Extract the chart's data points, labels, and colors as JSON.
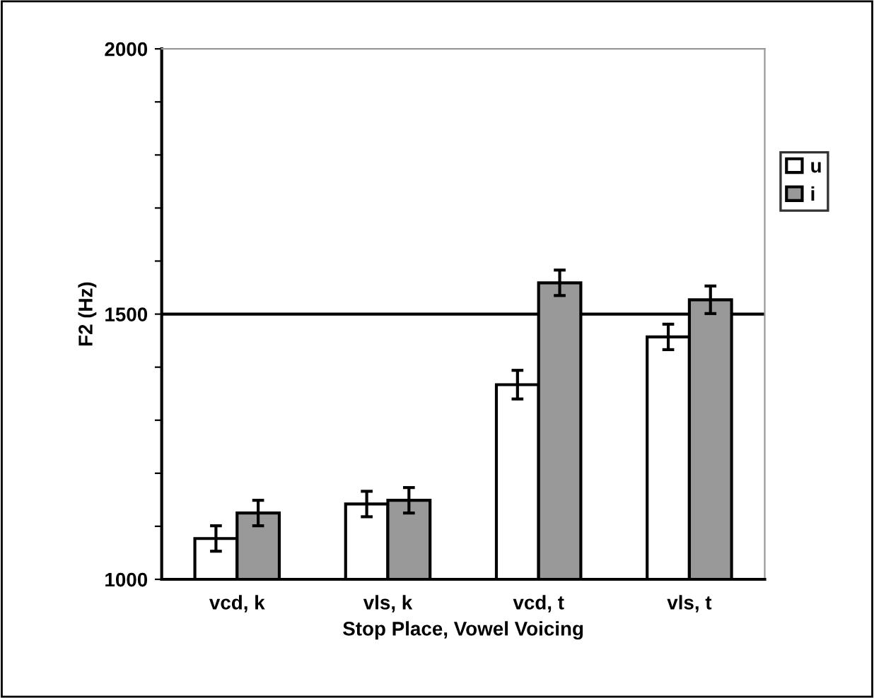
{
  "chart_data": {
    "type": "bar",
    "xlabel": "Stop Place, Vowel Voicing",
    "ylabel": "F2 (Hz)",
    "categories": [
      "vcd, k",
      "vls, k",
      "vcd, t",
      "vls, t"
    ],
    "series": [
      {
        "name": "u",
        "color": "#ffffff",
        "values": [
          1077,
          1142,
          1367,
          1457
        ],
        "errors": [
          24,
          24,
          27,
          24
        ]
      },
      {
        "name": "i",
        "color": "#999999",
        "values": [
          1125,
          1149,
          1559,
          1527
        ],
        "errors": [
          24,
          24,
          24,
          26
        ]
      }
    ],
    "ylim": [
      1000,
      2000
    ],
    "yticks": [
      1000,
      {
        "value": 1100,
        "label": null
      },
      {
        "value": 1200,
        "label": null
      },
      {
        "value": 1300,
        "label": null
      },
      {
        "value": 1400,
        "label": null
      },
      1500,
      {
        "value": 1600,
        "label": null
      },
      {
        "value": 1700,
        "label": null
      },
      {
        "value": 1800,
        "label": null
      },
      {
        "value": 1900,
        "label": null
      },
      2000
    ],
    "grid": "y",
    "legend": "right"
  }
}
